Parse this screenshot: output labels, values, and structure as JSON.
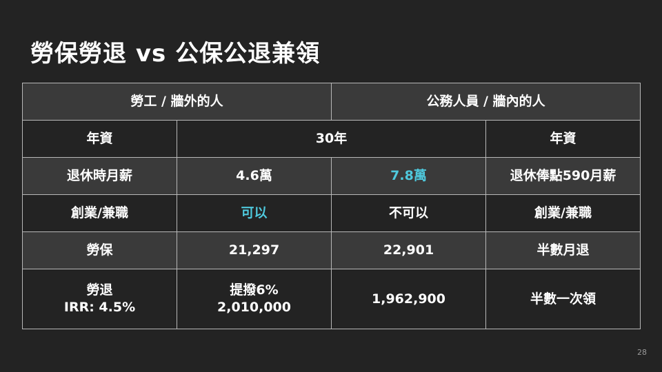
{
  "title": "勞保勞退 vs 公保公退兼領",
  "colors": {
    "accent": "#4fc9dd",
    "background": "#232323",
    "row_alt": "#3a3a3a",
    "border": "#b9b9b9"
  },
  "table": {
    "header": {
      "left": "勞工 / 牆外的人",
      "right": "公務人員 / 牆內的人"
    },
    "seniority": {
      "left_label": "年資",
      "value": "30年",
      "right_label": "年資"
    },
    "salary": {
      "label": "退休時月薪",
      "labor": "4.6萬",
      "civil": "7.8萬",
      "right_label": "退休俸點590月薪"
    },
    "side_job": {
      "label": "創業/兼職",
      "labor": "可以",
      "civil": "不可以",
      "right_label": "創業/兼職"
    },
    "insurance": {
      "label": "勞保",
      "labor": "21,297",
      "civil": "22,901",
      "right_label": "半數月退"
    },
    "pension": {
      "label_line1": "勞退",
      "label_line2": "IRR: 4.5%",
      "labor_line1": "提撥6%",
      "labor_line2": "2,010,000",
      "civil": "1,962,900",
      "right_label": "半數一次領"
    }
  },
  "page_number": "28"
}
